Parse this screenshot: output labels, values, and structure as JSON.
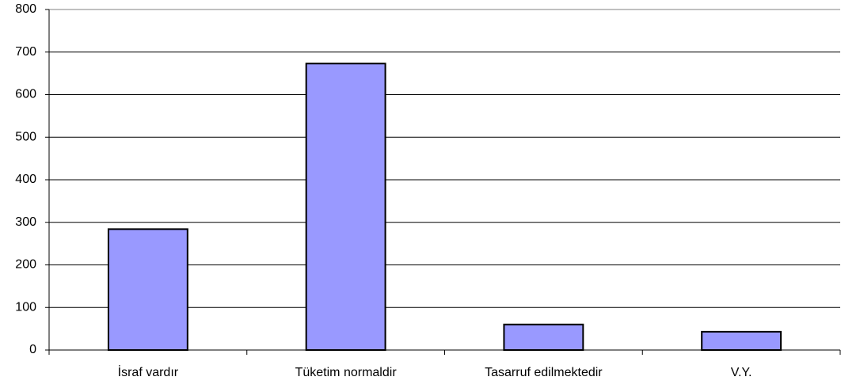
{
  "chart_data": {
    "type": "bar",
    "categories": [
      "İsraf vardır",
      "Tüketim normaldir",
      "Tasarruf edilmektedir",
      "V.Y."
    ],
    "values": [
      284,
      673,
      60,
      43
    ],
    "color": "#9999ff",
    "ylim": [
      0,
      800
    ],
    "yticks": [
      0,
      100,
      200,
      300,
      400,
      500,
      600,
      700,
      800
    ],
    "grid": true
  }
}
